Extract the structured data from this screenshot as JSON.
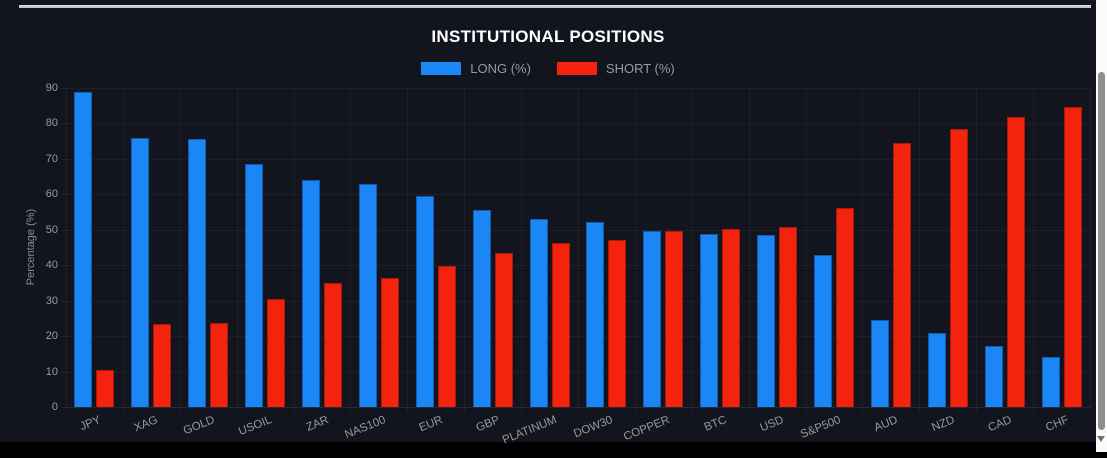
{
  "chart_data": {
    "type": "bar",
    "title": "INSTITUTIONAL POSITIONS",
    "ylabel": "Percentage (%)",
    "xlabel": "",
    "ylim": [
      0,
      90
    ],
    "yticks": [
      0,
      10,
      20,
      30,
      40,
      50,
      60,
      70,
      80,
      90
    ],
    "grid": true,
    "legend_position": "top-center",
    "categories": [
      "JPY",
      "XAG",
      "GOLD",
      "USOIL",
      "ZAR",
      "NAS100",
      "EUR",
      "GBP",
      "PLATINUM",
      "DOW30",
      "COPPER",
      "BTC",
      "USD",
      "S&P500",
      "AUD",
      "NZD",
      "CAD",
      "CHF"
    ],
    "series": [
      {
        "name": "LONG (%)",
        "color": "#1b86f5",
        "values": [
          88.8,
          76.0,
          75.5,
          68.7,
          64.1,
          62.9,
          59.5,
          55.7,
          53.0,
          52.1,
          49.7,
          48.7,
          48.4,
          42.9,
          24.5,
          21.0,
          17.3,
          14.1
        ]
      },
      {
        "name": "SHORT (%)",
        "color": "#f4230e",
        "values": [
          10.5,
          23.3,
          23.8,
          30.4,
          35.0,
          36.3,
          39.7,
          43.4,
          46.3,
          47.1,
          49.7,
          50.3,
          50.9,
          56.2,
          74.6,
          78.3,
          81.9,
          84.7
        ]
      }
    ]
  },
  "colors": {
    "panel_background": "#12141e",
    "title_text": "#ffffff",
    "legend_text": "#9a9a9a",
    "axis_text": "#9c9c9c",
    "gridline": "rgba(255,255,255,0.05)",
    "long_blue": "#1b86f5",
    "short_red": "#f4230e",
    "top_border_line": "#c9c9c9",
    "scrollbar_track": "#fbfbfb",
    "scrollbar_thumb": "#8f8f8f"
  }
}
